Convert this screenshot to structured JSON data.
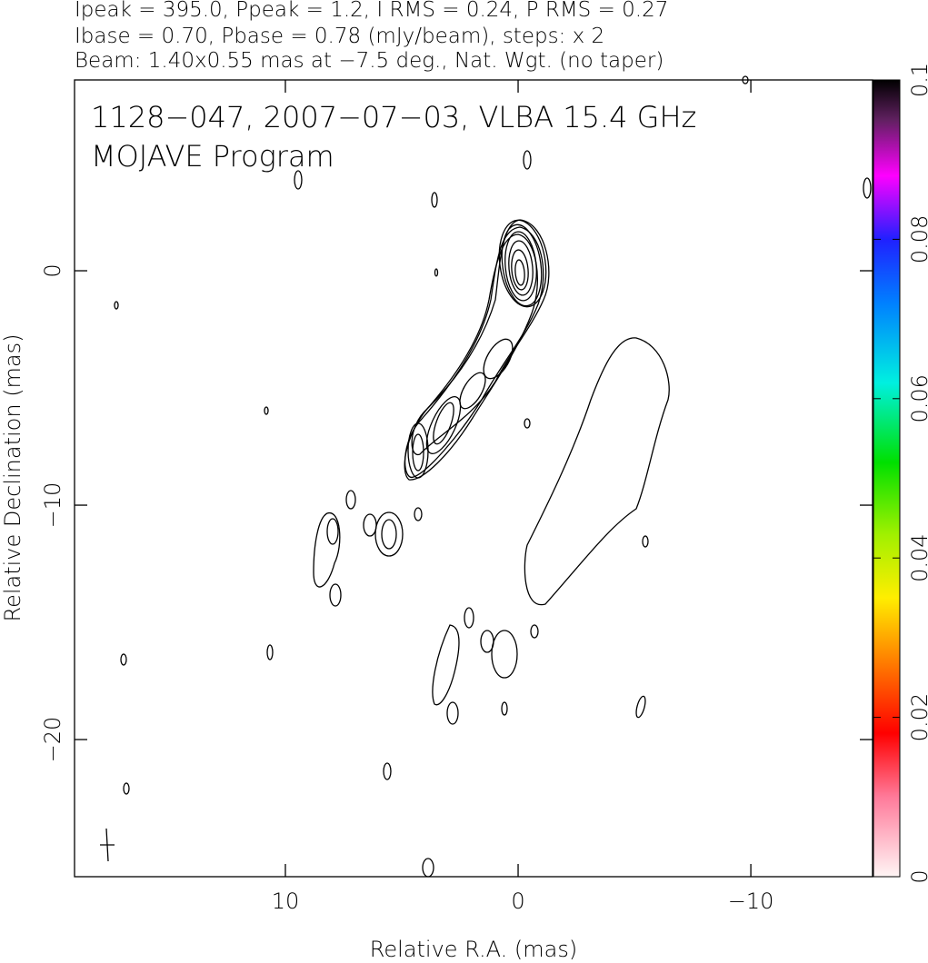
{
  "chart_data": {
    "type": "contour",
    "header": [
      "Ipeak = 395.0, Ppeak = 1.2, I RMS = 0.24, P RMS = 0.27",
      "Ibase = 0.70, Pbase = 0.78 (mJy/beam), steps: x 2",
      "Beam: 1.40x0.55 mas at −7.5 deg., Nat. Wgt. (no taper)"
    ],
    "title": "1128−047, 2007−07−03, VLBA 15.4 GHz",
    "subtitle": "MOJAVE Program",
    "x_label": "Relative R.A. (mas)",
    "y_label": "Relative Declination (mas)",
    "xlim": [
      19.06,
      -15.23
    ],
    "xticks": [
      10,
      0,
      {
        "value": -10,
        "label": "−10"
      }
    ],
    "ylim": [
      -25.85,
      8.14
    ],
    "yticks": [
      0,
      {
        "value": -10,
        "label": "−10"
      },
      {
        "value": -20,
        "label": "−20"
      }
    ],
    "colorbar": {
      "lim": [
        0,
        0.1
      ],
      "ticks": [
        0,
        0.02,
        0.04,
        0.06,
        0.08,
        0.1
      ]
    }
  }
}
